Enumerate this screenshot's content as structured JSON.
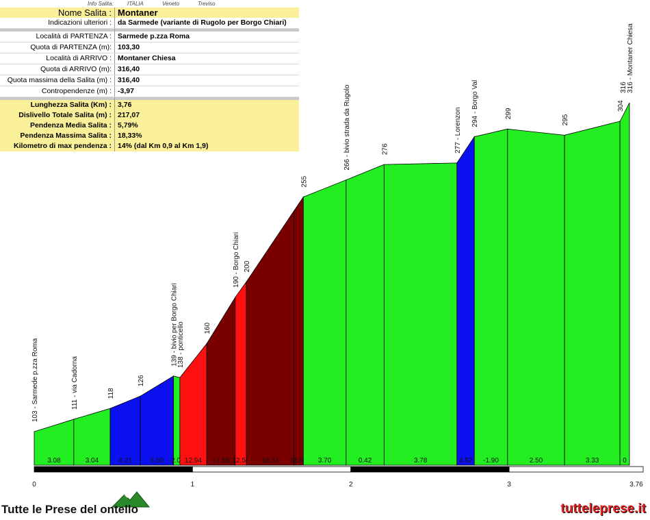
{
  "info_header": {
    "label": "Info Salita:",
    "country": "ITALIA",
    "region": "Veneto",
    "province": "Treviso"
  },
  "info_rows": [
    {
      "key": "Nome Salita :",
      "value": "Montaner",
      "style": "yellow big"
    },
    {
      "key": "Indicazioni ulteriori :",
      "value": "da Sarmede (variante di Rugolo per Borgo Chiari)",
      "style": "row"
    },
    {
      "key": "",
      "value": "",
      "style": "sep"
    },
    {
      "key": "Località di PARTENZA :",
      "value": "Sarmede p.zza Roma",
      "style": "row"
    },
    {
      "key": "Quota di PARTENZA (m):",
      "value": "103,30",
      "style": "row"
    },
    {
      "key": "Località di ARRIVO :",
      "value": "Montaner Chiesa",
      "style": "row"
    },
    {
      "key": "Quota di ARRIVO (m):",
      "value": "316,40",
      "style": "row"
    },
    {
      "key": "Quota massima della Salita (m) :",
      "value": "316,40",
      "style": "row"
    },
    {
      "key": "Contropendenze (m) :",
      "value": "-3,97",
      "style": "row"
    },
    {
      "key": "",
      "value": "",
      "style": "sep"
    },
    {
      "key": "Lunghezza Salita (Km) :",
      "value": "3,76",
      "style": "yellow bold"
    },
    {
      "key": "Dislivello Totale Salita (m) :",
      "value": "217,07",
      "style": "yellow bold"
    },
    {
      "key": "Pendenza Media Salita :",
      "value": "5,79%",
      "style": "yellow bold"
    },
    {
      "key": "Pendenza Massima Salita :",
      "value": "18,33%",
      "style": "yellow bold"
    },
    {
      "key": "Kilometro di max pendenza :",
      "value": "14%        (dal Km 0,9 al Km 1,9)",
      "style": "yellow bold"
    }
  ],
  "colors": {
    "green": "#22ee22",
    "blue": "#0a10ee",
    "red": "#ff1010",
    "maroon": "#7a0000"
  },
  "chart_data": {
    "type": "area",
    "xlabel": "",
    "ylabel": "",
    "xlim": [
      0,
      3.76
    ],
    "x_ticks": [
      "0",
      "1",
      "2",
      "3",
      "3.76"
    ],
    "points": [
      {
        "km": 0.0,
        "alt": 103,
        "label": "103 - Sarmede p.zza Roma"
      },
      {
        "km": 0.25,
        "alt": 111,
        "label": "111 - via Cadorna"
      },
      {
        "km": 0.48,
        "alt": 118,
        "label": "118"
      },
      {
        "km": 0.67,
        "alt": 126,
        "label": "126"
      },
      {
        "km": 0.88,
        "alt": 139,
        "label": "139 - bivio per Borgo Chiari"
      },
      {
        "km": 0.92,
        "alt": 138,
        "label": "138 - ponticello"
      },
      {
        "km": 1.09,
        "alt": 160,
        "label": "160"
      },
      {
        "km": 1.27,
        "alt": 190,
        "label": "190 - Borgo Chiari"
      },
      {
        "km": 1.34,
        "alt": 200,
        "label": "200"
      },
      {
        "km": 1.7,
        "alt": 255,
        "label": "255"
      },
      {
        "km": 1.97,
        "alt": 266,
        "label": "266 - bivio strada da Rugolo"
      },
      {
        "km": 2.21,
        "alt": 276,
        "label": "276"
      },
      {
        "km": 2.67,
        "alt": 277,
        "label": "277 - Lorenzon"
      },
      {
        "km": 2.78,
        "alt": 294,
        "label": "294 - Borgo Val"
      },
      {
        "km": 2.99,
        "alt": 299,
        "label": "299"
      },
      {
        "km": 3.35,
        "alt": 295,
        "label": "295"
      },
      {
        "km": 3.7,
        "alt": 304,
        "label": "304"
      },
      {
        "km": 3.76,
        "alt": 316,
        "label": "316"
      },
      {
        "km": 3.76,
        "alt": 316,
        "label": "316 - Montaner Chiesa"
      }
    ],
    "segments": [
      {
        "from": 0.0,
        "to": 0.25,
        "gradient": "3.08",
        "color": "green"
      },
      {
        "from": 0.25,
        "to": 0.48,
        "gradient": "3.04",
        "color": "green"
      },
      {
        "from": 0.48,
        "to": 0.67,
        "gradient": "4.21",
        "color": "blue"
      },
      {
        "from": 0.67,
        "to": 0.88,
        "gradient": "6.50",
        "color": "blue"
      },
      {
        "from": 0.88,
        "to": 0.92,
        "gradient": "-2.00",
        "color": "green"
      },
      {
        "from": 0.92,
        "to": 1.09,
        "gradient": "12.94",
        "color": "red"
      },
      {
        "from": 1.09,
        "to": 1.27,
        "gradient": "17.65",
        "color": "maroon"
      },
      {
        "from": 1.27,
        "to": 1.34,
        "gradient": "12.50",
        "color": "red"
      },
      {
        "from": 1.34,
        "to": 1.64,
        "gradient": "18.33",
        "color": "maroon"
      },
      {
        "from": 1.64,
        "to": 1.7,
        "gradient": "18.00",
        "color": "maroon"
      },
      {
        "from": 1.7,
        "to": 1.97,
        "gradient": "3.70",
        "color": "green"
      },
      {
        "from": 1.97,
        "to": 2.21,
        "gradient": "0.42",
        "color": "green"
      },
      {
        "from": 2.21,
        "to": 2.67,
        "gradient": "3.78",
        "color": "green"
      },
      {
        "from": 2.67,
        "to": 2.78,
        "gradient": "4.52",
        "color": "blue"
      },
      {
        "from": 2.78,
        "to": 2.99,
        "gradient": "-1.90",
        "color": "green"
      },
      {
        "from": 2.99,
        "to": 3.35,
        "gradient": "2.50",
        "color": "green"
      },
      {
        "from": 3.35,
        "to": 3.7,
        "gradient": "3.33",
        "color": "green"
      },
      {
        "from": 3.7,
        "to": 3.76,
        "gradient": "0",
        "color": "green"
      }
    ]
  },
  "footer": {
    "brand": "Tutte le Prese del  ontello",
    "url": "tutteleprese.it"
  }
}
